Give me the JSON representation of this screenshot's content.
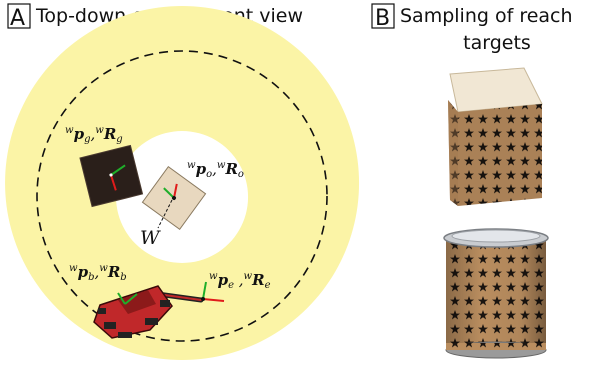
{
  "panel_a": {
    "letter": "A",
    "title": "Top-down environment view",
    "world_label": "W",
    "goal_label": {
      "sup1": "w",
      "p": "p",
      "sub1": "g",
      "sep": ",",
      "sup2": "w",
      "R": "R",
      "sub2": "g"
    },
    "object_label": {
      "sup1": "w",
      "p": "p",
      "sub1": "o",
      "sep": ",",
      "sup2": "w",
      "R": "R",
      "sub2": "o"
    },
    "base_label": {
      "sup1": "w",
      "p": "p",
      "sub1": "b",
      "sep": ",",
      "sup2": "w",
      "R": "R",
      "sub2": "b"
    },
    "ee_label": {
      "sup1": "w",
      "p": "p",
      "sub1": "e",
      "sep": " ,",
      "sup2": "w",
      "R": "R",
      "sub2": "e"
    }
  },
  "panel_b": {
    "letter": "B",
    "title_line1": "Sampling of reach",
    "title_line2": "targets"
  },
  "colors": {
    "annulus": "#fbf4a6",
    "dashed_circle": "#111111",
    "dark_box": "#2a1f1a",
    "light_box": "#e8d8bf",
    "cardboard": "#b98d5f",
    "robot_red": "#c0282a",
    "axis_red": "#e01b1b",
    "axis_green": "#1fae2a"
  }
}
